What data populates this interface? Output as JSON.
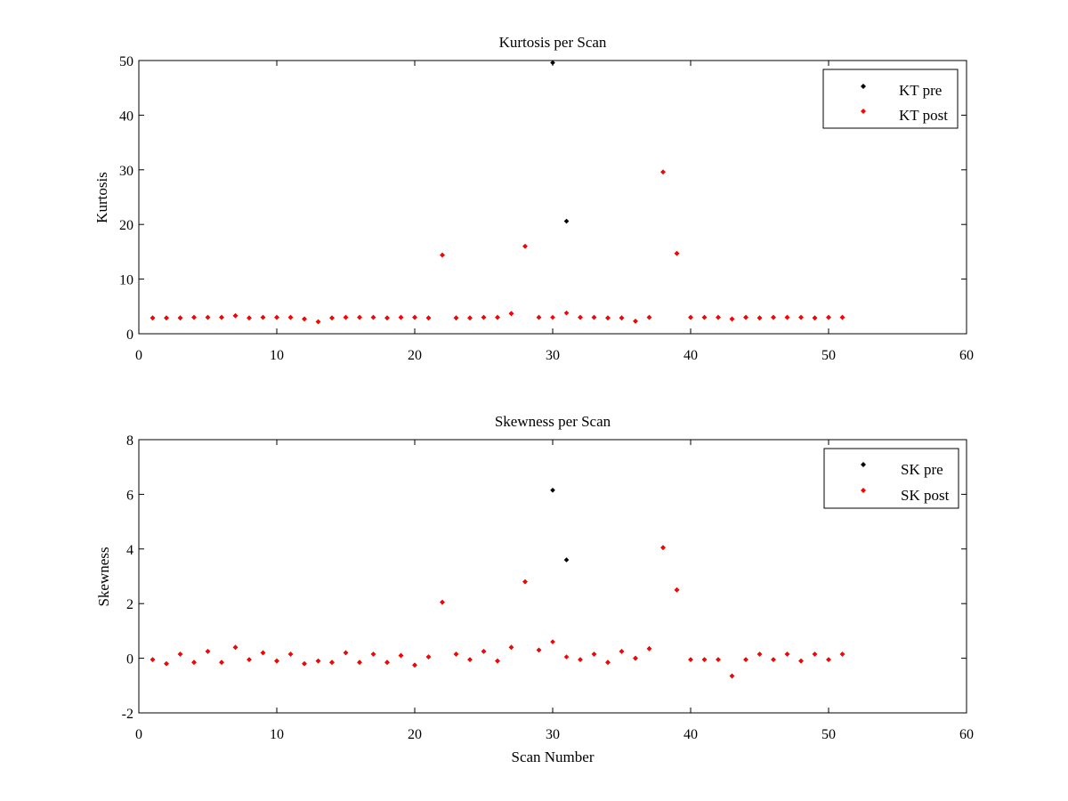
{
  "chart_data": [
    {
      "type": "scatter",
      "title": "Kurtosis per Scan",
      "xlabel": "",
      "ylabel": "Kurtosis",
      "xlim": [
        0,
        60
      ],
      "ylim": [
        0,
        50
      ],
      "xticks": [
        0,
        10,
        20,
        30,
        40,
        50,
        60
      ],
      "yticks": [
        0,
        10,
        20,
        30,
        40,
        50
      ],
      "grid": false,
      "legend_position": "top-right",
      "series": [
        {
          "name": "KT pre",
          "color": "#000000",
          "marker": "diamond",
          "x": [
            1,
            2,
            3,
            4,
            5,
            6,
            7,
            8,
            9,
            10,
            11,
            12,
            13,
            14,
            15,
            16,
            17,
            18,
            19,
            20,
            21,
            22,
            23,
            24,
            25,
            26,
            27,
            28,
            29,
            30,
            31,
            32,
            33,
            34,
            35,
            36,
            37,
            38,
            39,
            40,
            41,
            42,
            43,
            44,
            45,
            46,
            47,
            48,
            49,
            50,
            51
          ],
          "y": [
            2.9,
            2.9,
            2.9,
            3.0,
            3.0,
            3.0,
            3.3,
            2.9,
            3.0,
            3.0,
            3.0,
            2.7,
            2.2,
            2.9,
            3.0,
            3.0,
            3.0,
            2.9,
            3.0,
            3.0,
            2.9,
            14.4,
            2.9,
            2.9,
            3.0,
            3.0,
            3.7,
            16.0,
            3.0,
            49.6,
            20.6,
            3.0,
            3.0,
            2.9,
            2.9,
            2.3,
            3.0,
            29.6,
            14.7,
            3.0,
            3.0,
            3.0,
            2.7,
            3.0,
            2.9,
            3.0,
            3.0,
            3.0,
            2.9,
            3.0,
            3.0
          ]
        },
        {
          "name": "KT post",
          "color": "#ff0000",
          "marker": "diamond",
          "x": [
            1,
            2,
            3,
            4,
            5,
            6,
            7,
            8,
            9,
            10,
            11,
            12,
            13,
            14,
            15,
            16,
            17,
            18,
            19,
            20,
            21,
            22,
            23,
            24,
            25,
            26,
            27,
            28,
            29,
            30,
            31,
            32,
            33,
            34,
            35,
            36,
            37,
            38,
            39,
            40,
            41,
            42,
            43,
            44,
            45,
            46,
            47,
            48,
            49,
            50,
            51
          ],
          "y": [
            2.9,
            2.9,
            2.9,
            3.0,
            3.0,
            3.0,
            3.3,
            2.9,
            3.0,
            3.0,
            3.0,
            2.7,
            2.2,
            2.9,
            3.0,
            3.0,
            3.0,
            2.9,
            3.0,
            3.0,
            2.9,
            14.4,
            2.9,
            2.9,
            3.0,
            3.0,
            3.7,
            16.0,
            3.0,
            3.0,
            3.8,
            3.0,
            3.0,
            2.9,
            2.9,
            2.3,
            3.0,
            29.6,
            14.7,
            3.0,
            3.0,
            3.0,
            2.7,
            3.0,
            2.9,
            3.0,
            3.0,
            3.0,
            2.9,
            3.0,
            3.0
          ]
        }
      ]
    },
    {
      "type": "scatter",
      "title": "Skewness per Scan",
      "xlabel": "Scan Number",
      "ylabel": "Skewness",
      "xlim": [
        0,
        60
      ],
      "ylim": [
        -2,
        8
      ],
      "xticks": [
        0,
        10,
        20,
        30,
        40,
        50,
        60
      ],
      "yticks": [
        -2,
        0,
        2,
        4,
        6,
        8
      ],
      "grid": false,
      "legend_position": "top-right",
      "series": [
        {
          "name": "SK pre",
          "color": "#000000",
          "marker": "diamond",
          "x": [
            1,
            2,
            3,
            4,
            5,
            6,
            7,
            8,
            9,
            10,
            11,
            12,
            13,
            14,
            15,
            16,
            17,
            18,
            19,
            20,
            21,
            22,
            23,
            24,
            25,
            26,
            27,
            28,
            29,
            30,
            31,
            32,
            33,
            34,
            35,
            36,
            37,
            38,
            39,
            40,
            41,
            42,
            43,
            44,
            45,
            46,
            47,
            48,
            49,
            50,
            51
          ],
          "y": [
            -0.05,
            -0.2,
            0.15,
            -0.15,
            0.25,
            -0.15,
            0.4,
            -0.05,
            0.2,
            -0.1,
            0.15,
            -0.2,
            -0.1,
            -0.15,
            0.2,
            -0.15,
            0.15,
            -0.15,
            0.1,
            -0.25,
            0.05,
            2.05,
            0.15,
            -0.05,
            0.25,
            -0.1,
            0.4,
            2.8,
            0.3,
            6.15,
            3.6,
            -0.05,
            0.15,
            -0.15,
            0.25,
            0.0,
            0.35,
            4.05,
            2.5,
            -0.05,
            -0.05,
            -0.05,
            -0.65,
            -0.05,
            0.15,
            -0.05,
            0.15,
            -0.1,
            0.15,
            -0.05,
            0.15
          ]
        },
        {
          "name": "SK post",
          "color": "#ff0000",
          "marker": "diamond",
          "x": [
            1,
            2,
            3,
            4,
            5,
            6,
            7,
            8,
            9,
            10,
            11,
            12,
            13,
            14,
            15,
            16,
            17,
            18,
            19,
            20,
            21,
            22,
            23,
            24,
            25,
            26,
            27,
            28,
            29,
            30,
            31,
            32,
            33,
            34,
            35,
            36,
            37,
            38,
            39,
            40,
            41,
            42,
            43,
            44,
            45,
            46,
            47,
            48,
            49,
            50,
            51
          ],
          "y": [
            -0.05,
            -0.2,
            0.15,
            -0.15,
            0.25,
            -0.15,
            0.4,
            -0.05,
            0.2,
            -0.1,
            0.15,
            -0.2,
            -0.1,
            -0.15,
            0.2,
            -0.15,
            0.15,
            -0.15,
            0.1,
            -0.25,
            0.05,
            2.05,
            0.15,
            -0.05,
            0.25,
            -0.1,
            0.4,
            2.8,
            0.3,
            0.6,
            0.05,
            -0.05,
            0.15,
            -0.15,
            0.25,
            0.0,
            0.35,
            4.05,
            2.5,
            -0.05,
            -0.05,
            -0.05,
            -0.65,
            -0.05,
            0.15,
            -0.05,
            0.15,
            -0.1,
            0.15,
            -0.05,
            0.15
          ]
        }
      ]
    }
  ]
}
